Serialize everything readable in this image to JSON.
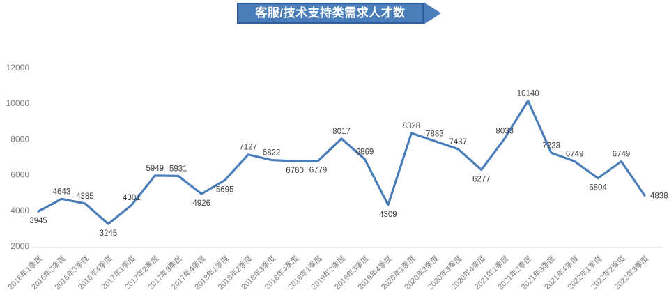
{
  "title": {
    "text": "客服/技术支持类需求人才数"
  },
  "colors": {
    "line": "#4A7EBB",
    "banner_fill": "#4A7EBB",
    "banner_border": "#2E5C9E",
    "banner_text_color": "#FFFFFF",
    "data_label": "#3F3F3F",
    "axis_label": "#7F7F7F",
    "axis_line": "#D9D9D9"
  },
  "chart_data": {
    "type": "line",
    "title": "客服/技术支持类需求人才数",
    "categories": [
      "2016年1季度",
      "2016年2季度",
      "2016年3季度",
      "2016年4季度",
      "2017年1季度",
      "2017年2季度",
      "2017年3季度",
      "2017年4季度",
      "2018年1季度",
      "2018年2季度",
      "2018年3季度",
      "2018年4季度",
      "2019年1季度",
      "2019年2季度",
      "2019年3季度",
      "2019年4季度",
      "2020年1季度",
      "2020年2季度",
      "2020年3季度",
      "2020年4季度",
      "2021年1季度",
      "2021年2季度",
      "2021年3季度",
      "2021年4季度",
      "2022年1季度",
      "2022年2季度",
      "2022年3季度"
    ],
    "values": [
      3945,
      4643,
      4385,
      3245,
      4301,
      5949,
      5931,
      4926,
      5695,
      7127,
      6822,
      6760,
      6779,
      8017,
      6869,
      4309,
      8328,
      7883,
      7437,
      6277,
      8033,
      10140,
      7223,
      6749,
      5804,
      6749,
      4838
    ],
    "xlabel": "",
    "ylabel": "",
    "ylim": [
      2000,
      12000
    ],
    "yticks": [
      2000,
      4000,
      6000,
      8000,
      10000,
      12000
    ],
    "grid": false,
    "legend": false,
    "data_labels": true,
    "label_below_indices": [
      0,
      3,
      7,
      8,
      11,
      12,
      15,
      19,
      24
    ],
    "label_right_indices": [
      26
    ]
  }
}
